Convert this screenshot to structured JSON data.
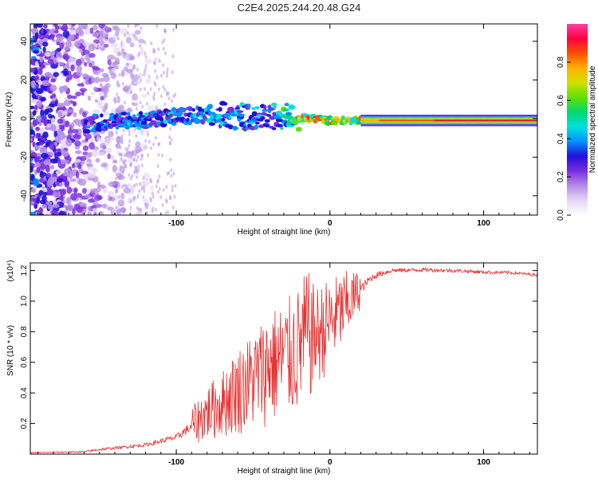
{
  "title": "C2E4.2025.244.20.48.G24",
  "chart_data": [
    {
      "type": "heatmap",
      "title": "C2E4.2025.244.20.48.G24",
      "xlabel": "Height of straight line (km)",
      "ylabel": "Frequency (Hz)",
      "xlim": [
        -195,
        135
      ],
      "ylim": [
        -50,
        49
      ],
      "x_ticks": [
        -100,
        0,
        100
      ],
      "x_tick_labels": [
        "-100",
        "0",
        "100"
      ],
      "y_ticks": [
        -40,
        -20,
        0,
        20,
        40
      ],
      "y_tick_labels": [
        "-40",
        "-20",
        "0",
        "20",
        "40"
      ],
      "colorbar": {
        "label": "Normalized spectral amplitude",
        "range": [
          0,
          1
        ],
        "ticks": [
          0,
          0.2,
          0.4,
          0.6,
          0.8
        ],
        "tick_labels": [
          "0.0",
          "0.2",
          "0.4",
          "0.6",
          "0.8"
        ],
        "colors": [
          "#ffffff",
          "#e6d5f5",
          "#b48ee6",
          "#7a2de0",
          "#2010d8",
          "#0090ff",
          "#00e0e0",
          "#00d870",
          "#60e000",
          "#d0e000",
          "#ffb000",
          "#ff5000",
          "#ff0040",
          "#ff40a0"
        ]
      },
      "ridge": {
        "description_free": true,
        "x": [
          -160,
          -140,
          -120,
          -100,
          -80,
          -60,
          -40,
          -25,
          -15,
          0,
          20,
          40,
          80,
          135
        ],
        "freq_hz": [
          -3,
          -1,
          -1,
          1,
          2,
          1,
          1,
          1,
          0,
          -1,
          -1,
          -1,
          -1,
          -1
        ],
        "amplitude": [
          0.35,
          0.4,
          0.4,
          0.4,
          0.45,
          0.4,
          0.45,
          0.6,
          0.85,
          0.8,
          0.75,
          0.85,
          0.9,
          0.9
        ]
      }
    },
    {
      "type": "line",
      "title": "",
      "xlabel": "Height of straight line (km)",
      "ylabel": "SNR (10 * v/v)",
      "scale_label": "(x10⁴)",
      "xlim": [
        -195,
        135
      ],
      "ylim": [
        0,
        1.25
      ],
      "x_ticks": [
        -100,
        0,
        100
      ],
      "x_tick_labels": [
        "-100",
        "0",
        "100"
      ],
      "y_ticks": [
        0.2,
        0.4,
        0.6,
        0.8,
        1.0,
        1.2
      ],
      "y_tick_labels": [
        "0.2",
        "0.4",
        "0.6",
        "0.8",
        "1.0",
        "1.2"
      ],
      "line_color": "#e83030",
      "envelope": {
        "x": [
          -195,
          -160,
          -150,
          -140,
          -120,
          -100,
          -90,
          -80,
          -70,
          -60,
          -50,
          -40,
          -30,
          -20,
          -15,
          -10,
          0,
          10,
          20,
          25,
          30,
          40,
          60,
          80,
          100,
          120,
          135
        ],
        "low": [
          0.0,
          0.0,
          0.0,
          0.01,
          0.02,
          0.04,
          0.06,
          0.08,
          0.1,
          0.12,
          0.15,
          0.18,
          0.2,
          0.25,
          0.3,
          0.4,
          0.55,
          0.7,
          0.95,
          1.05,
          1.1,
          1.15,
          1.16,
          1.16,
          1.15,
          1.15,
          1.14
        ],
        "high": [
          0.02,
          0.03,
          0.06,
          0.07,
          0.1,
          0.18,
          0.3,
          0.45,
          0.55,
          0.7,
          0.8,
          0.95,
          1.0,
          1.1,
          1.22,
          1.1,
          1.15,
          1.2,
          1.2,
          1.22,
          1.24,
          1.25,
          1.25,
          1.24,
          1.23,
          1.22,
          1.2
        ]
      }
    }
  ]
}
